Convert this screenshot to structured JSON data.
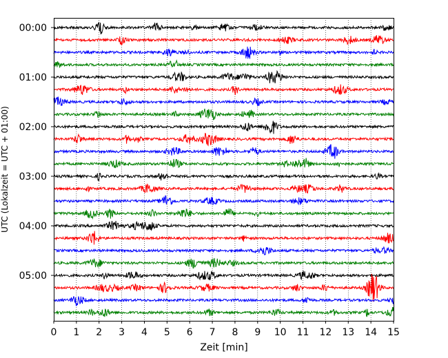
{
  "chart_data": {
    "type": "line",
    "xlabel": "Zeit  [min]",
    "ylabel": "UTC (Lokalzeit = UTC + 01:00)",
    "xlim": [
      0,
      15
    ],
    "x_ticks": [
      "0",
      "1",
      "2",
      "3",
      "4",
      "5",
      "6",
      "7",
      "8",
      "9",
      "10",
      "11",
      "12",
      "13",
      "14",
      "15"
    ],
    "y_ticks": [
      "00:00",
      "01:00",
      "02:00",
      "03:00",
      "04:00",
      "05:00"
    ],
    "vertical_grid": "dotted at every minute",
    "row_interval_minutes": 15,
    "row_count": 24,
    "colors": [
      "#000000",
      "#ff0000",
      "#0000ff",
      "#008000"
    ],
    "notable_event": {
      "row_start": "05:15",
      "minute": 14.1
    }
  }
}
